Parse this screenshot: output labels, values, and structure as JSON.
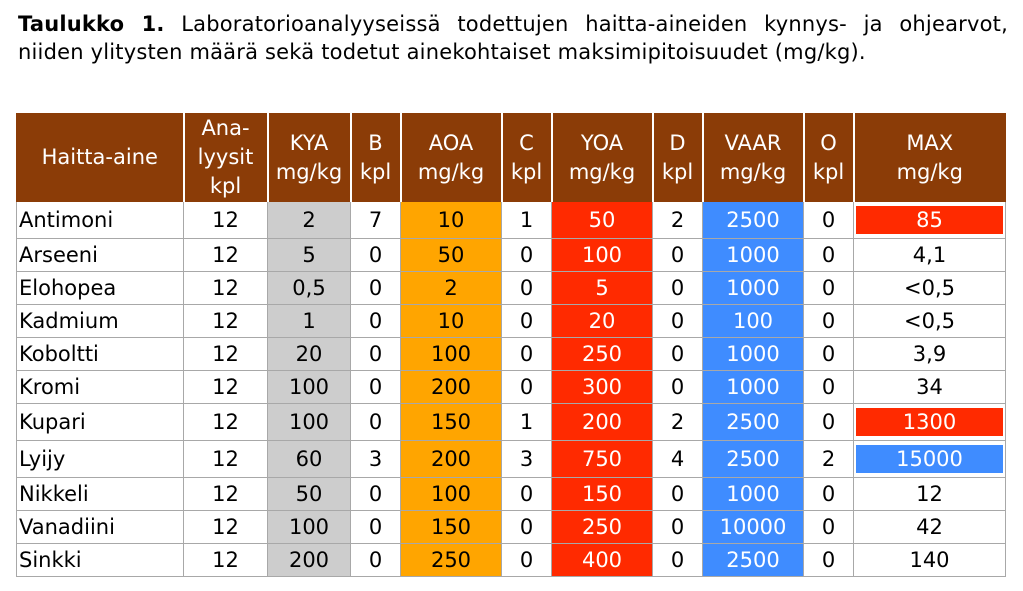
{
  "caption": {
    "label": "Taulukko 1.",
    "text": "Laboratorioanalyyseissä todettujen haitta-aineiden kynnys- ja ohjearvot, niiden ylitysten määrä sekä todetut ainekohtaiset maksimipitoisuudet (mg/kg)."
  },
  "colors": {
    "header_bg": "#8b3c07",
    "kya_bg": "#cdcdcd",
    "aoa_bg": "#ffa500",
    "yoa_bg": "#ff2a00",
    "vaar_bg": "#3f8cff"
  },
  "headers": [
    {
      "line1": "Haitta-aine",
      "line2": "",
      "line3": ""
    },
    {
      "line1": "Ana-",
      "line2": "lyysit",
      "line3": "kpl"
    },
    {
      "line1": "KYA",
      "line2": "mg/kg",
      "line3": ""
    },
    {
      "line1": "B",
      "line2": "kpl",
      "line3": ""
    },
    {
      "line1": "AOA",
      "line2": "mg/kg",
      "line3": ""
    },
    {
      "line1": "C",
      "line2": "kpl",
      "line3": ""
    },
    {
      "line1": "YOA",
      "line2": "mg/kg",
      "line3": ""
    },
    {
      "line1": "D",
      "line2": "kpl",
      "line3": ""
    },
    {
      "line1": "VAAR",
      "line2": "mg/kg",
      "line3": ""
    },
    {
      "line1": "O",
      "line2": "kpl",
      "line3": ""
    },
    {
      "line1": "MAX",
      "line2": "mg/kg",
      "line3": ""
    }
  ],
  "rows": [
    {
      "name": "Antimoni",
      "analyysit": "12",
      "kya": "2",
      "b": "7",
      "aoa": "10",
      "c": "1",
      "yoa": "50",
      "d": "2",
      "vaar": "2500",
      "o": "0",
      "max": "85",
      "max_highlight": "red"
    },
    {
      "name": "Arseeni",
      "analyysit": "12",
      "kya": "5",
      "b": "0",
      "aoa": "50",
      "c": "0",
      "yoa": "100",
      "d": "0",
      "vaar": "1000",
      "o": "0",
      "max": "4,1",
      "max_highlight": "none"
    },
    {
      "name": "Elohopea",
      "analyysit": "12",
      "kya": "0,5",
      "b": "0",
      "aoa": "2",
      "c": "0",
      "yoa": "5",
      "d": "0",
      "vaar": "1000",
      "o": "0",
      "max": "<0,5",
      "max_highlight": "none"
    },
    {
      "name": "Kadmium",
      "analyysit": "12",
      "kya": "1",
      "b": "0",
      "aoa": "10",
      "c": "0",
      "yoa": "20",
      "d": "0",
      "vaar": "100",
      "o": "0",
      "max": "<0,5",
      "max_highlight": "none"
    },
    {
      "name": "Koboltti",
      "analyysit": "12",
      "kya": "20",
      "b": "0",
      "aoa": "100",
      "c": "0",
      "yoa": "250",
      "d": "0",
      "vaar": "1000",
      "o": "0",
      "max": "3,9",
      "max_highlight": "none"
    },
    {
      "name": "Kromi",
      "analyysit": "12",
      "kya": "100",
      "b": "0",
      "aoa": "200",
      "c": "0",
      "yoa": "300",
      "d": "0",
      "vaar": "1000",
      "o": "0",
      "max": "34",
      "max_highlight": "none"
    },
    {
      "name": "Kupari",
      "analyysit": "12",
      "kya": "100",
      "b": "0",
      "aoa": "150",
      "c": "1",
      "yoa": "200",
      "d": "2",
      "vaar": "2500",
      "o": "0",
      "max": "1300",
      "max_highlight": "red"
    },
    {
      "name": "Lyijy",
      "analyysit": "12",
      "kya": "60",
      "b": "3",
      "aoa": "200",
      "c": "3",
      "yoa": "750",
      "d": "4",
      "vaar": "2500",
      "o": "2",
      "max": "15000",
      "max_highlight": "blue"
    },
    {
      "name": "Nikkeli",
      "analyysit": "12",
      "kya": "50",
      "b": "0",
      "aoa": "100",
      "c": "0",
      "yoa": "150",
      "d": "0",
      "vaar": "1000",
      "o": "0",
      "max": "12",
      "max_highlight": "none"
    },
    {
      "name": "Vanadiini",
      "analyysit": "12",
      "kya": "100",
      "b": "0",
      "aoa": "150",
      "c": "0",
      "yoa": "250",
      "d": "0",
      "vaar": "10000",
      "o": "0",
      "max": "42",
      "max_highlight": "none"
    },
    {
      "name": "Sinkki",
      "analyysit": "12",
      "kya": "200",
      "b": "0",
      "aoa": "250",
      "c": "0",
      "yoa": "400",
      "d": "0",
      "vaar": "2500",
      "o": "0",
      "max": "140",
      "max_highlight": "none"
    }
  ]
}
